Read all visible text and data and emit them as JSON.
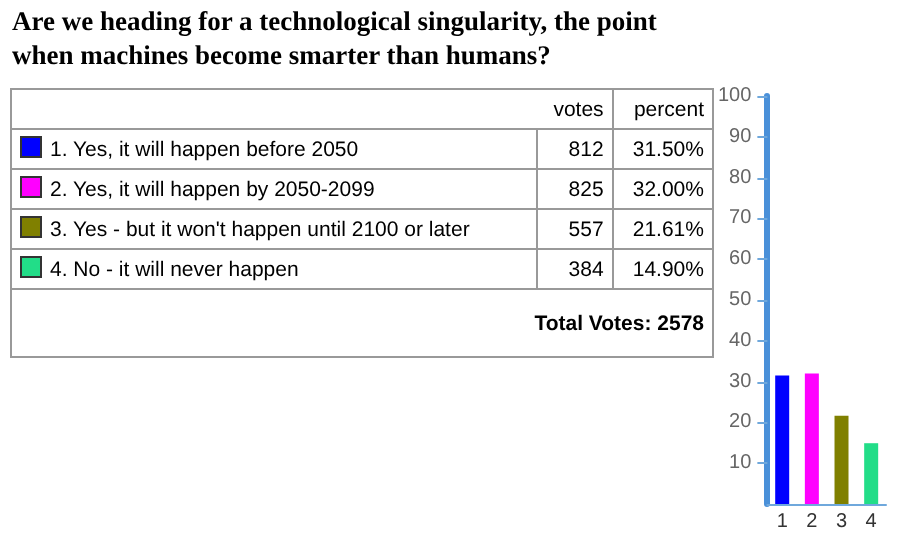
{
  "chart_data": {
    "type": "bar",
    "title": "Are we heading for a technological singularity, the point when machines become smarter than humans?",
    "categories": [
      "1",
      "2",
      "3",
      "4"
    ],
    "values": [
      31.5,
      32,
      21.61,
      14.9
    ],
    "colors": [
      "#0000ff",
      "#ff00ff",
      "#808000",
      "#22dd88"
    ],
    "annotations": [
      "votes",
      "percent",
      "1. Yes, it will happen before 2050",
      "812",
      "31.50%",
      "2. Yes, it will happen by 2050-2099",
      "825",
      "32.00%",
      "3. Yes - but it won't happen until 2100 or later",
      "557",
      "21.61%",
      "4. No - it will never happen",
      "384",
      "14.90%",
      "Total Votes: 2578"
    ],
    "ylim": [
      0,
      100
    ],
    "yticks": [
      10,
      20,
      30,
      40,
      50,
      60,
      70,
      80,
      90,
      100
    ],
    "grid": false
  }
}
